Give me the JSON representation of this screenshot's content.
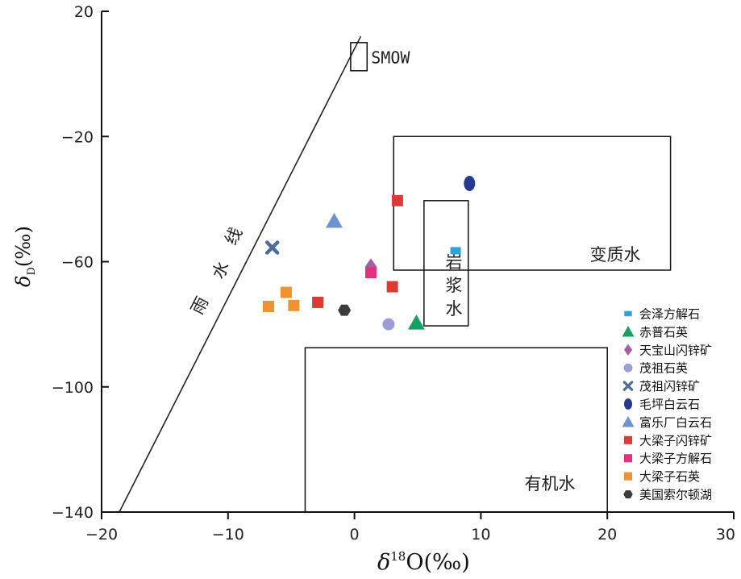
{
  "chart_data": {
    "type": "scatter",
    "xlabel": {
      "symbol": "δ",
      "superscript": "18",
      "main": "O(‰)"
    },
    "ylabel": {
      "symbol": "δ",
      "subscript": "D",
      "main": "(‰)"
    },
    "xlim": [
      -20,
      30
    ],
    "ylim": [
      -140,
      20
    ],
    "xticks": [
      -20,
      -10,
      0,
      10,
      20,
      30
    ],
    "yticks": [
      20,
      -20,
      -60,
      -100,
      -140
    ],
    "xtick_labels": [
      "−20",
      "−10",
      "0",
      "10",
      "20",
      "30"
    ],
    "ytick_labels": [
      "20",
      "−20",
      "−60",
      "−100",
      "−140"
    ],
    "meteoric_line": {
      "label_chars": [
        "雨",
        "水",
        "线"
      ],
      "from": [
        -18.6,
        -140
      ],
      "to": [
        0.5,
        12
      ]
    },
    "smow": {
      "label": "SMOW",
      "box_x": [
        -0.3,
        1.0
      ],
      "box_y": [
        1,
        10
      ]
    },
    "regions": [
      {
        "name": "metamorphic",
        "label": "变质水",
        "x": [
          3.1,
          25
        ],
        "y": [
          -62.7,
          -20
        ]
      },
      {
        "name": "magmatic",
        "label_chars": [
          "岩",
          "浆",
          "水"
        ],
        "x": [
          5.5,
          9.0
        ],
        "y": [
          -80.5,
          -40.5
        ]
      },
      {
        "name": "organic",
        "label": "有机水",
        "x": [
          -3.9,
          20
        ],
        "y": [
          -140,
          -87.5
        ]
      }
    ],
    "series": [
      {
        "name": "会泽方解石",
        "marker": "square-small",
        "color": "#29a3dd",
        "points": [
          [
            8,
            -56.5
          ]
        ]
      },
      {
        "name": "赤普石英",
        "marker": "triangle",
        "color": "#17a05d",
        "points": [
          [
            4.9,
            -79.5
          ]
        ]
      },
      {
        "name": "天宝山闪锌矿",
        "marker": "diamond",
        "color": "#a35fa2",
        "points": [
          [
            1.3,
            -61.5
          ]
        ]
      },
      {
        "name": "茂祖石英",
        "marker": "circle",
        "color": "#9b9fd3",
        "points": [
          [
            2.7,
            -80
          ]
        ]
      },
      {
        "name": "茂祖闪锌矿",
        "marker": "cross",
        "color": "#4e6c9b",
        "points": [
          [
            -6.5,
            -55.5
          ]
        ]
      },
      {
        "name": "毛坪白云石",
        "marker": "ellipse",
        "color": "#283a90",
        "points": [
          [
            9.1,
            -35
          ]
        ]
      },
      {
        "name": "富乐厂白云石",
        "marker": "triangle",
        "color": "#6f91cf",
        "points": [
          [
            -1.6,
            -47
          ]
        ]
      },
      {
        "name": "大梁子闪锌矿",
        "marker": "square",
        "color": "#dc3a35",
        "points": [
          [
            3.4,
            -40.5
          ],
          [
            3.0,
            -68
          ],
          [
            -2.9,
            -73
          ]
        ]
      },
      {
        "name": "大梁子方解石",
        "marker": "square",
        "color": "#e4317f",
        "points": [
          [
            1.3,
            -63.5
          ]
        ]
      },
      {
        "name": "大梁子石英",
        "marker": "square",
        "color": "#f0922f",
        "points": [
          [
            -6.8,
            -74.3
          ],
          [
            -5.4,
            -69.8
          ],
          [
            -4.8,
            -74
          ]
        ]
      },
      {
        "name": "美国索尔顿湖",
        "marker": "hexagon",
        "color": "#3c3c3c",
        "points": [
          [
            -0.8,
            -75.5
          ]
        ]
      }
    ]
  }
}
